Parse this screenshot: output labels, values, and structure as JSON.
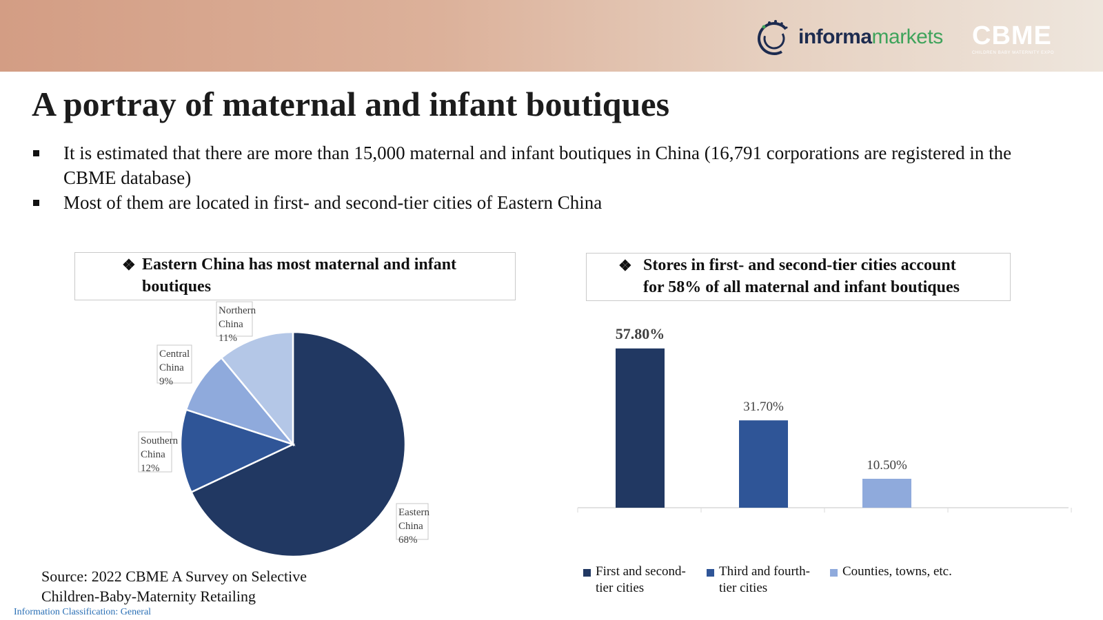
{
  "header": {
    "informa_brand_main": "informa",
    "informa_brand_accent": "markets",
    "cbme_logo_text": "CBME",
    "cbme_logo_subtitle": "CHILDREN BABY MATERNITY EXPO"
  },
  "title": "A portray of maternal and infant boutiques",
  "bullets": [
    "It is estimated that there are more than 15,000 maternal and infant boutiques in China (16,791 corporations are registered in the CBME database)",
    "Most of them are located in first- and second-tier cities of Eastern China"
  ],
  "left_box": {
    "icon": "diamond-star-icon",
    "line1": "Eastern China has most maternal and infant",
    "line2": "boutiques"
  },
  "right_box": {
    "icon": "diamond-star-icon",
    "line1": "Stores in first- and second-tier cities account",
    "line2": "for 58% of all maternal and infant boutiques"
  },
  "chart_data": [
    {
      "type": "pie",
      "title": "",
      "slices": [
        {
          "label_lines": [
            "Eastern",
            "China"
          ],
          "value": 68,
          "value_label": "68%",
          "color": "#213862"
        },
        {
          "label_lines": [
            "Southern",
            "China"
          ],
          "value": 12,
          "value_label": "12%",
          "color": "#2f5597"
        },
        {
          "label_lines": [
            "Central",
            "China"
          ],
          "value": 9,
          "value_label": "9%",
          "color": "#8faadc"
        },
        {
          "label_lines": [
            "Northern",
            "China"
          ],
          "value": 11,
          "value_label": "11%",
          "color": "#b4c7e7"
        }
      ]
    },
    {
      "type": "bar",
      "title": "",
      "categories": [
        "First and second-tier cities",
        "Third and fourth-tier cities",
        "Counties, towns, etc."
      ],
      "legend_lines": [
        [
          "First and second-",
          "tier cities"
        ],
        [
          "Third and fourth-",
          "tier cities"
        ],
        [
          "Counties, towns, etc."
        ]
      ],
      "values": [
        57.8,
        31.7,
        10.5
      ],
      "value_labels": [
        "57.80%",
        "31.70%",
        "10.50%"
      ],
      "colors": [
        "#213862",
        "#2f5597",
        "#8faadc"
      ],
      "ylim": [
        0,
        60
      ],
      "grid": false,
      "legend_position": "bottom"
    }
  ],
  "source_lines": [
    "Source: 2022 CBME A Survey on Selective",
    "Children-Baby-Maternity Retailing"
  ],
  "classification": "Information Classification: General"
}
